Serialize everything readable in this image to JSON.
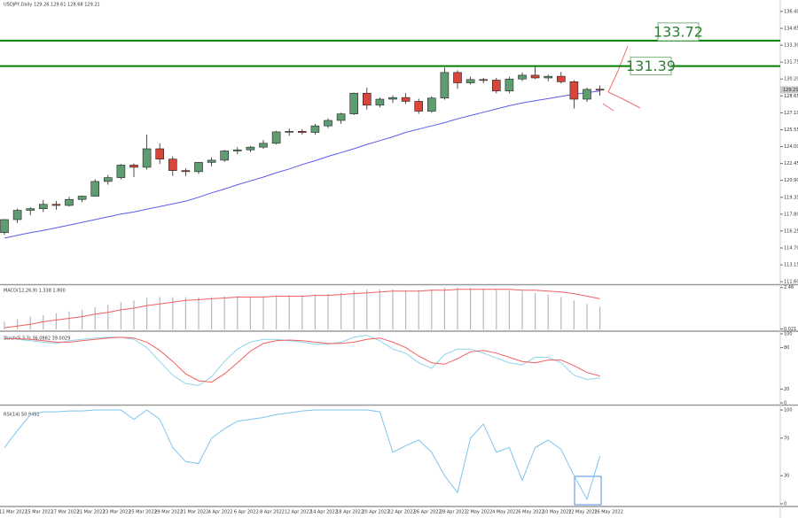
{
  "chart_data": [
    {
      "type": "candlestick",
      "title": "USDJPY,Daily 129.26 129.61 128.68 129.21",
      "categories": [
        "11 Mar 2022",
        null,
        "15 Mar 2022",
        null,
        "17 Mar 2022",
        null,
        "21 Mar 2022",
        null,
        "23 Mar 2022",
        null,
        "25 Mar 2022",
        null,
        "29 Mar 2022",
        null,
        "31 Mar 2022",
        null,
        "4 Apr 2022",
        null,
        "6 Apr 2022",
        null,
        "8 Apr 2022",
        null,
        "12 Apr 2022",
        null,
        "14 Apr 2022",
        null,
        "18 Apr 2022",
        null,
        "20 Apr 2022",
        null,
        "22 Apr 2022",
        null,
        "26 Apr 2022",
        null,
        "28 Apr 2022",
        null,
        "2 May 2022",
        null,
        "4 May 2022",
        null,
        "6 May 2022",
        null,
        "10 May 2022",
        null,
        "12 May 2022",
        null,
        "16 May 2022"
      ],
      "open": [
        116.1,
        117.3,
        118.15,
        118.3,
        118.7,
        118.6,
        119.15,
        119.45,
        120.8,
        121.15,
        122.3,
        122.1,
        123.8,
        122.85,
        121.8,
        121.7,
        122.55,
        122.75,
        123.6,
        123.7,
        123.95,
        124.3,
        125.35,
        125.4,
        125.3,
        125.9,
        126.4,
        127.0,
        128.9,
        127.8,
        128.35,
        128.5,
        128.15,
        127.25,
        128.45,
        130.8,
        129.85,
        130.15,
        130.1,
        129.1,
        130.2,
        130.55,
        130.3,
        130.45,
        129.95,
        128.35,
        129.26
      ],
      "high": [
        117.35,
        118.3,
        118.45,
        119.1,
        119.0,
        119.4,
        119.5,
        121.0,
        121.4,
        122.4,
        122.45,
        125.1,
        124.3,
        123.1,
        122.0,
        122.6,
        123.0,
        123.7,
        123.95,
        124.05,
        124.6,
        125.45,
        125.65,
        125.6,
        126.1,
        126.6,
        127.1,
        128.95,
        129.4,
        128.5,
        128.7,
        128.9,
        128.4,
        128.6,
        131.25,
        131.0,
        130.4,
        130.3,
        130.3,
        130.4,
        130.8,
        131.35,
        130.6,
        130.85,
        130.1,
        129.4,
        129.61
      ],
      "low": [
        115.9,
        117.0,
        117.7,
        118.0,
        118.2,
        118.5,
        118.9,
        119.4,
        120.5,
        121.0,
        121.2,
        121.9,
        122.4,
        121.3,
        121.3,
        121.5,
        122.2,
        122.6,
        123.3,
        123.5,
        123.8,
        124.2,
        125.0,
        125.1,
        125.1,
        125.7,
        126.1,
        126.9,
        127.4,
        127.6,
        128.0,
        127.9,
        127.0,
        127.1,
        128.3,
        129.3,
        129.7,
        129.8,
        128.9,
        128.9,
        130.0,
        130.2,
        130.0,
        129.8,
        127.5,
        128.1,
        128.68
      ],
      "close": [
        117.3,
        118.15,
        118.3,
        118.7,
        118.6,
        119.15,
        119.45,
        120.8,
        121.15,
        122.3,
        122.1,
        123.8,
        122.85,
        121.8,
        121.7,
        122.55,
        122.75,
        123.6,
        123.7,
        123.95,
        124.3,
        125.35,
        125.4,
        125.3,
        125.9,
        126.4,
        127.0,
        128.9,
        127.8,
        128.35,
        128.5,
        128.15,
        127.25,
        128.45,
        130.8,
        129.85,
        130.15,
        130.1,
        129.1,
        130.2,
        130.55,
        130.3,
        130.45,
        129.95,
        128.35,
        129.25,
        129.21
      ],
      "up_color": "#5f9c72",
      "down_color": "#d8453a",
      "ma": {
        "color": "#5b5bea",
        "values": [
          115.6,
          115.85,
          116.1,
          116.3,
          116.55,
          116.8,
          117.05,
          117.3,
          117.55,
          117.8,
          118.0,
          118.25,
          118.5,
          118.75,
          119.0,
          119.35,
          119.75,
          120.1,
          120.5,
          120.85,
          121.2,
          121.6,
          121.95,
          122.35,
          122.7,
          123.1,
          123.45,
          123.8,
          124.2,
          124.55,
          124.9,
          125.3,
          125.6,
          125.9,
          126.2,
          126.55,
          126.85,
          127.15,
          127.45,
          127.75,
          128.0,
          128.2,
          128.4,
          128.6,
          128.8,
          128.95,
          129.1
        ]
      },
      "levels": [
        133.72,
        131.39
      ],
      "level_color": "#008000",
      "ylim": [
        111.45,
        137.45
      ],
      "yticks": [
        {
          "value": 136.4,
          "label": "136.40"
        },
        {
          "value": 134.85,
          "label": "134.85"
        },
        {
          "value": 133.3,
          "label": "133.30"
        },
        {
          "value": 131.75,
          "label": "131.75"
        },
        {
          "value": 130.2,
          "label": "130.20"
        },
        {
          "value": 128.65,
          "label": "128.65"
        },
        {
          "value": 127.1,
          "label": "127.10"
        },
        {
          "value": 125.55,
          "label": "125.55"
        },
        {
          "value": 124.0,
          "label": "124.00"
        },
        {
          "value": 122.45,
          "label": "122.45"
        },
        {
          "value": 120.9,
          "label": "120.90"
        },
        {
          "value": 119.35,
          "label": "119.35"
        },
        {
          "value": 117.8,
          "label": "117.80"
        },
        {
          "value": 116.25,
          "label": "116.25"
        },
        {
          "value": 114.7,
          "label": "114.70"
        },
        {
          "value": 113.15,
          "label": "113.15"
        },
        {
          "value": 111.6,
          "label": "111.60"
        }
      ]
    },
    {
      "type": "macd",
      "title": "MACD(12,26,9) 1.338 1.800",
      "values": [
        0.45,
        0.6,
        0.75,
        0.85,
        0.95,
        1.05,
        1.15,
        1.3,
        1.45,
        1.6,
        1.7,
        1.85,
        1.9,
        1.9,
        1.9,
        1.9,
        1.9,
        1.95,
        1.95,
        1.95,
        1.95,
        2.0,
        2.0,
        2.0,
        2.05,
        2.1,
        2.15,
        2.3,
        2.35,
        2.35,
        2.35,
        2.3,
        2.3,
        2.35,
        2.45,
        2.45,
        2.45,
        2.4,
        2.35,
        2.3,
        2.25,
        2.15,
        2.05,
        1.9,
        1.7,
        1.5,
        1.338
      ],
      "color": "#b8b8b8",
      "signal": {
        "color": "#f06060",
        "values": [
          0.1,
          0.2,
          0.3,
          0.45,
          0.55,
          0.65,
          0.75,
          0.9,
          1.0,
          1.15,
          1.25,
          1.4,
          1.5,
          1.6,
          1.7,
          1.75,
          1.8,
          1.85,
          1.9,
          1.9,
          1.9,
          1.95,
          1.95,
          1.95,
          2.0,
          2.0,
          2.05,
          2.1,
          2.15,
          2.2,
          2.25,
          2.25,
          2.25,
          2.3,
          2.3,
          2.35,
          2.35,
          2.35,
          2.35,
          2.35,
          2.3,
          2.3,
          2.25,
          2.2,
          2.1,
          1.95,
          1.8
        ]
      },
      "ylim": [
        0,
        2.55
      ],
      "yticks": [
        2.46,
        0.021
      ]
    },
    {
      "type": "stochastic",
      "title": "Stoch(5,3,3) 36.0882 39.0029",
      "series": [
        {
          "color": "#8fd3e8",
          "values": [
            95,
            92,
            90,
            88,
            86,
            90,
            92,
            94,
            95,
            95,
            92,
            80,
            60,
            40,
            28,
            25,
            38,
            60,
            78,
            88,
            92,
            92,
            90,
            88,
            85,
            85,
            88,
            95,
            98,
            90,
            78,
            72,
            58,
            50,
            70,
            78,
            78,
            72,
            65,
            58,
            55,
            66,
            66,
            58,
            40,
            34,
            36
          ]
        },
        {
          "color": "#f06060",
          "values": [
            93,
            93,
            92,
            90,
            88,
            88,
            90,
            92,
            94,
            95,
            94,
            88,
            76,
            60,
            42,
            32,
            30,
            42,
            58,
            75,
            86,
            90,
            91,
            90,
            88,
            86,
            86,
            88,
            92,
            94,
            88,
            80,
            68,
            58,
            56,
            64,
            74,
            76,
            72,
            66,
            60,
            58,
            62,
            62,
            54,
            44,
            39
          ]
        }
      ],
      "ylim": [
        0,
        100
      ],
      "yticks": [
        100,
        80,
        20,
        0
      ]
    },
    {
      "type": "line",
      "title": "RSI(14) 50.9492",
      "color": "#7ec4ee",
      "values": [
        60,
        78,
        95,
        98,
        98,
        99,
        99,
        100,
        100,
        100,
        90,
        100,
        90,
        60,
        45,
        43,
        70,
        80,
        88,
        90,
        92,
        95,
        97,
        99,
        100,
        100,
        100,
        100,
        100,
        98,
        55,
        62,
        68,
        55,
        30,
        12,
        70,
        85,
        55,
        60,
        25,
        60,
        68,
        58,
        30,
        5,
        50.95
      ],
      "ylim": [
        0,
        100
      ],
      "yticks": [
        100,
        70,
        30,
        0
      ]
    }
  ]
}
